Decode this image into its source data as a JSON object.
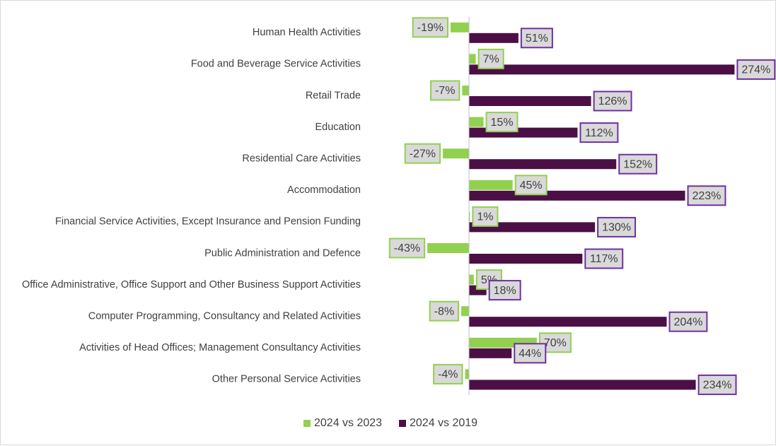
{
  "chart_data": {
    "type": "bar",
    "orientation": "horizontal",
    "categories": [
      "Human Health Activities",
      "Food and Beverage Service Activities",
      "Retail Trade",
      "Education",
      "Residential Care Activities",
      "Accommodation",
      "Financial Service Activities, Except Insurance and Pension Funding",
      "Public Administration and Defence",
      "Office Administrative, Office Support and Other Business Support Activities",
      "Computer Programming, Consultancy and Related Activities",
      "Activities of Head Offices; Management Consultancy Activities",
      "Other Personal Service Activities"
    ],
    "series": [
      {
        "name": "2024 vs 2023",
        "color": "#92d050",
        "values": [
          -19,
          7,
          -7,
          15,
          -27,
          45,
          1,
          -43,
          5,
          -8,
          70,
          -4
        ],
        "labels": [
          "-19%",
          "7%",
          "-7%",
          "15%",
          "-27%",
          "45%",
          "1%",
          "-43%",
          "5%",
          "-8%",
          "70%",
          "-4%"
        ]
      },
      {
        "name": "2024 vs 2019",
        "color": "#4b0f45",
        "values": [
          51,
          274,
          126,
          112,
          152,
          223,
          130,
          117,
          18,
          204,
          44,
          234
        ],
        "labels": [
          "51%",
          "274%",
          "126%",
          "112%",
          "152%",
          "223%",
          "130%",
          "117%",
          "18%",
          "204%",
          "44%",
          "234%"
        ]
      }
    ],
    "value_format": "percent",
    "legend_position": "bottom",
    "grid": false,
    "xlim": [
      -70,
      310
    ]
  }
}
